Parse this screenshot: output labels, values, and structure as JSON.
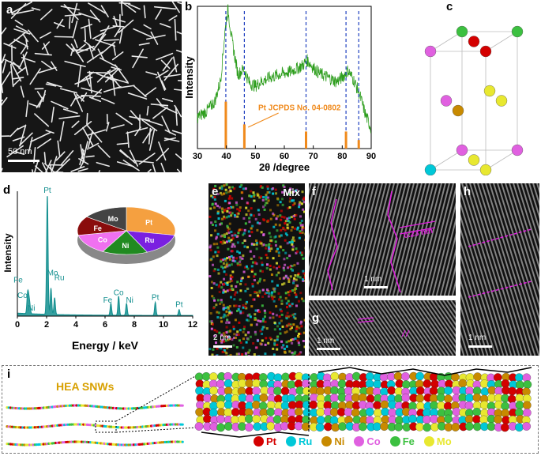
{
  "panels": {
    "a": {
      "label": "a",
      "scale": "50 nm"
    },
    "b": {
      "label": "b",
      "annotation": "Pt JCPDS No. 04-0802"
    },
    "c": {
      "label": "c"
    },
    "d": {
      "label": "d"
    },
    "e": {
      "label": "e",
      "tag": "Mix",
      "scale": "2 nm"
    },
    "f": {
      "label": "f",
      "scale": "1 nm",
      "spacing": "0.23 nm"
    },
    "g": {
      "label": "g",
      "scale": "1 nm"
    },
    "h": {
      "label": "h",
      "scale": "1 nm"
    },
    "i": {
      "label": "i",
      "title": "HEA SNWs"
    }
  },
  "colors": {
    "Pt": "#d40000",
    "Ru": "#00c8d8",
    "Ni": "#c88a00",
    "Co": "#e060e0",
    "Fe": "#3cc040",
    "Mo": "#e8e830",
    "xrd": "#2e9e1e",
    "ref": "#f08a1c",
    "edx": "#138f8f",
    "magenta": "#e020e0"
  },
  "legend": [
    "Pt",
    "Ru",
    "Ni",
    "Co",
    "Fe",
    "Mo"
  ],
  "chart_data": [
    {
      "type": "line",
      "panel": "b",
      "title": "",
      "xlabel": "2θ /degree",
      "ylabel": "Intensity",
      "xlim": [
        30,
        90
      ],
      "xticks": [
        30,
        40,
        50,
        60,
        70,
        80,
        90
      ],
      "series": [
        {
          "name": "",
          "x": [
            30,
            33,
            36,
            38,
            39.5,
            40.5,
            42,
            44,
            46,
            48,
            50,
            52,
            55,
            58,
            60,
            62,
            64,
            66,
            68,
            70,
            72,
            75,
            78,
            80,
            82,
            84,
            86,
            88,
            90
          ],
          "y": [
            0.22,
            0.26,
            0.33,
            0.48,
            0.82,
            0.98,
            0.75,
            0.52,
            0.56,
            0.46,
            0.44,
            0.47,
            0.5,
            0.52,
            0.53,
            0.54,
            0.56,
            0.58,
            0.62,
            0.57,
            0.53,
            0.5,
            0.47,
            0.5,
            0.55,
            0.48,
            0.38,
            0.24,
            0.14
          ]
        }
      ],
      "reference_lines": [
        39.8,
        46.2,
        67.5,
        81.3,
        85.7
      ],
      "reference_heights": [
        0.33,
        0.17,
        0.12,
        0.12,
        0.06
      ]
    },
    {
      "type": "line",
      "panel": "d",
      "title": "",
      "xlabel": "Energy / keV",
      "ylabel": "Intensity",
      "xlim": [
        0,
        12
      ],
      "xticks": [
        0,
        2,
        4,
        6,
        8,
        10,
        12
      ],
      "peaks": [
        {
          "x": 0.7,
          "y": 0.16,
          "label": "Fe"
        },
        {
          "x": 0.78,
          "y": 0.1,
          "label": "Co"
        },
        {
          "x": 0.85,
          "y": 0.06,
          "label": "Ni"
        },
        {
          "x": 2.05,
          "y": 1.0,
          "label": "Pt"
        },
        {
          "x": 2.3,
          "y": 0.22,
          "label": "Mo"
        },
        {
          "x": 2.55,
          "y": 0.14,
          "label": "Ru"
        },
        {
          "x": 6.4,
          "y": 0.1,
          "label": "Fe"
        },
        {
          "x": 6.93,
          "y": 0.16,
          "label": "Co"
        },
        {
          "x": 7.47,
          "y": 0.1,
          "label": "Ni"
        },
        {
          "x": 9.44,
          "y": 0.11,
          "label": "Pt"
        },
        {
          "x": 11.07,
          "y": 0.05,
          "label": "Pt"
        }
      ],
      "pie": [
        {
          "label": "Pt",
          "value": 28
        },
        {
          "label": "Ru",
          "value": 15
        },
        {
          "label": "Ni",
          "value": 15
        },
        {
          "label": "Co",
          "value": 14
        },
        {
          "label": "Fe",
          "value": 13
        },
        {
          "label": "Mo",
          "value": 15
        }
      ]
    }
  ]
}
